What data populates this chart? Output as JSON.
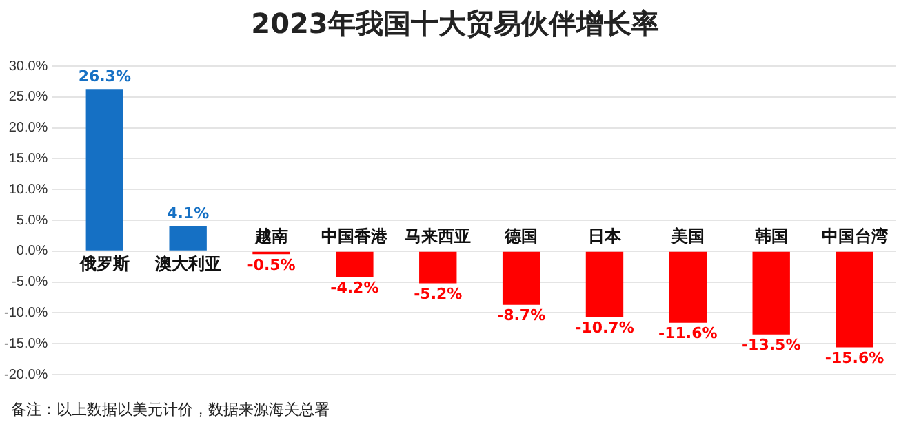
{
  "chart_data": {
    "type": "bar",
    "title": "2023年我国十大贸易伙伴增长率",
    "categories": [
      "俄罗斯",
      "澳大利亚",
      "越南",
      "中国香港",
      "马来西亚",
      "德国",
      "日本",
      "美国",
      "韩国",
      "中国台湾"
    ],
    "values": [
      26.3,
      4.1,
      -0.5,
      -4.2,
      -5.2,
      -8.7,
      -10.7,
      -11.6,
      -13.5,
      -15.6
    ],
    "colors": [
      "#1570c4",
      "#1570c4",
      "#ff0000",
      "#ff0000",
      "#ff0000",
      "#ff0000",
      "#ff0000",
      "#ff0000",
      "#ff0000",
      "#ff0000"
    ],
    "value_labels": [
      "26.3%",
      "4.1%",
      "-0.5%",
      "-4.2%",
      "-5.2%",
      "-8.7%",
      "-10.7%",
      "-11.6%",
      "-13.5%",
      "-15.6%"
    ],
    "ylim": [
      -20,
      30
    ],
    "yticks": [
      {
        "value": -20,
        "label": "-20.0%"
      },
      {
        "value": -15,
        "label": "-15.0%"
      },
      {
        "value": -10,
        "label": "-10.0%"
      },
      {
        "value": -5,
        "label": "-5.0%"
      },
      {
        "value": 0,
        "label": "0.0%"
      },
      {
        "value": 5,
        "label": "5.0%"
      },
      {
        "value": 10,
        "label": "10.0%"
      },
      {
        "value": 15,
        "label": "15.0%"
      },
      {
        "value": 20,
        "label": "20.0%"
      },
      {
        "value": 25,
        "label": "25.0%"
      },
      {
        "value": 30,
        "label": "30.0%"
      }
    ],
    "grid": "y",
    "annotations": [
      "备注：以上数据以美元计价，数据来源海关总署"
    ]
  }
}
